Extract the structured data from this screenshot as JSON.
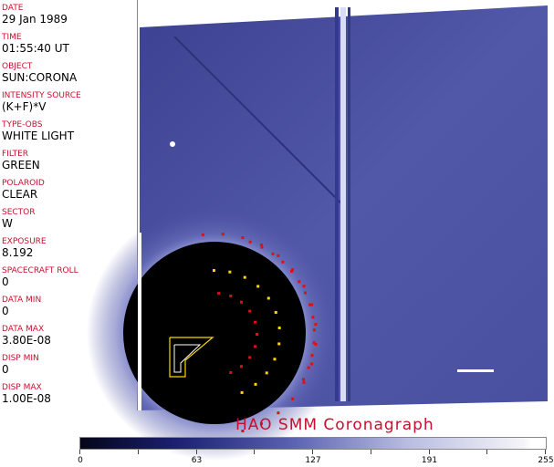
{
  "fields": [
    {
      "label": "DATE",
      "value": "29 Jan 1989"
    },
    {
      "label": "TIME",
      "value": "01:55:40 UT"
    },
    {
      "label": "OBJECT",
      "value": "SUN:CORONA"
    },
    {
      "label": "INTENSITY SOURCE",
      "value": "(K+F)*V"
    },
    {
      "label": "TYPE-OBS",
      "value": "WHITE LIGHT"
    },
    {
      "label": "FILTER",
      "value": "GREEN"
    },
    {
      "label": "POLAROID",
      "value": "CLEAR"
    },
    {
      "label": "SECTOR",
      "value": "W"
    },
    {
      "label": "EXPOSURE",
      "value": "8.192"
    },
    {
      "label": "SPACECRAFT ROLL",
      "value": "0"
    },
    {
      "label": "DATA MIN",
      "value": "0"
    },
    {
      "label": "DATA MAX",
      "value": "3.80E-08"
    },
    {
      "label": "DISP MIN",
      "value": "0"
    },
    {
      "label": "DISP MAX",
      "value": "1.00E-08"
    }
  ],
  "title": "HAO   SMM  Coronagraph",
  "colorbar": {
    "ticks": [
      "0",
      "63",
      "127",
      "191",
      "255"
    ]
  },
  "colors": {
    "label": "#c8102e",
    "corona": "#4a4f9e"
  }
}
